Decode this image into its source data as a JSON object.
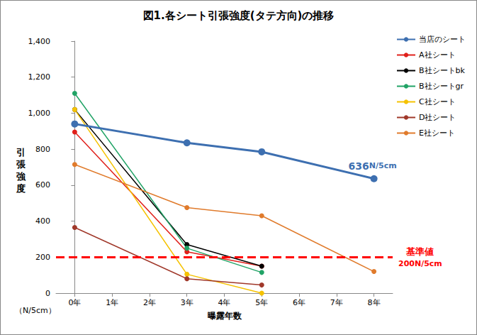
{
  "chart_data": {
    "type": "line",
    "title": "図1.各シート引張強度(タテ方向)の推移",
    "x_label": "曝露年数",
    "y_label": "引張強度",
    "y_unit": "（N/5cm）",
    "x": [
      0,
      3,
      5,
      8
    ],
    "xlim": [
      -0.5,
      8.5
    ],
    "xticks": [
      {
        "value": 0,
        "label": "0年"
      },
      {
        "value": 1,
        "label": "1年"
      },
      {
        "value": 2,
        "label": "2年"
      },
      {
        "value": 3,
        "label": "3年"
      },
      {
        "value": 4,
        "label": "4年"
      },
      {
        "value": 5,
        "label": "5年"
      },
      {
        "value": 6,
        "label": "6年"
      },
      {
        "value": 7,
        "label": "7年"
      },
      {
        "value": 8,
        "label": "8年"
      }
    ],
    "ylim": [
      0,
      1400
    ],
    "yticks": [
      0,
      200,
      400,
      600,
      800,
      1000,
      1200,
      1400
    ],
    "grid": false,
    "legend": "right",
    "marker": "circle",
    "series": [
      {
        "name": "当店のシート",
        "color": "#3d6fb0",
        "values": [
          940,
          835,
          785,
          636
        ]
      },
      {
        "name": "A社シート",
        "color": "#e0201b",
        "values": [
          895,
          230,
          150,
          null
        ]
      },
      {
        "name": "B社シートbk",
        "color": "#000000",
        "values": [
          1020,
          270,
          150,
          null
        ]
      },
      {
        "name": "B社シートgr",
        "color": "#21a366",
        "values": [
          1110,
          250,
          115,
          null
        ]
      },
      {
        "name": "C社シート",
        "color": "#f5c200",
        "values": [
          1020,
          105,
          0,
          null
        ]
      },
      {
        "name": "D社シート",
        "color": "#a0382a",
        "values": [
          365,
          80,
          45,
          null
        ]
      },
      {
        "name": "E社シート",
        "color": "#e07b2c",
        "values": [
          715,
          475,
          430,
          120
        ]
      }
    ],
    "annotations": [
      {
        "x": 8,
        "y": 636,
        "value": 636,
        "unit": "N/5cm",
        "color": "#3d6fb0"
      }
    ],
    "reference_line": {
      "value": 200,
      "color": "#ff0000",
      "line_style": "dashed",
      "labels": [
        "基準値",
        "200N/5cm"
      ]
    }
  }
}
